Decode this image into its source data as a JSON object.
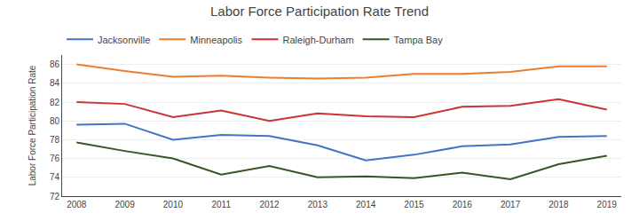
{
  "chart_data": {
    "type": "line",
    "title": "Labor Force Participation Rate Trend",
    "ylabel": "Labor Force Participation Rate",
    "x": [
      2008,
      2009,
      2010,
      2011,
      2012,
      2013,
      2014,
      2015,
      2016,
      2017,
      2018,
      2019
    ],
    "series": [
      {
        "name": "Jacksonville",
        "color": "#4472C4",
        "values": [
          79.6,
          79.7,
          78.0,
          78.5,
          78.4,
          77.4,
          75.8,
          76.4,
          77.3,
          77.5,
          78.3,
          78.4
        ]
      },
      {
        "name": "Minneapolis",
        "color": "#ED7D31",
        "values": [
          86.0,
          85.3,
          84.7,
          84.8,
          84.6,
          84.5,
          84.6,
          85.0,
          85.0,
          85.2,
          85.8,
          85.8
        ]
      },
      {
        "name": "Raleigh-Durham",
        "color": "#CD3333",
        "values": [
          82.0,
          81.8,
          80.4,
          81.1,
          80.0,
          80.8,
          80.5,
          80.4,
          81.5,
          81.6,
          82.3,
          81.2
        ]
      },
      {
        "name": "Tampa Bay",
        "color": "#375623",
        "values": [
          77.7,
          76.8,
          76.0,
          74.3,
          75.2,
          74.0,
          74.1,
          73.9,
          74.5,
          73.8,
          75.4,
          76.3
        ]
      }
    ],
    "xlim": [
      2007.7,
      2019.3
    ],
    "xticks": [
      2008,
      2009,
      2010,
      2011,
      2012,
      2013,
      2014,
      2015,
      2016,
      2017,
      2018,
      2019
    ],
    "ylim": [
      72,
      87
    ],
    "yticks": [
      72,
      74,
      76,
      78,
      80,
      82,
      84,
      86
    ],
    "grid": true,
    "legend": "upper left"
  }
}
